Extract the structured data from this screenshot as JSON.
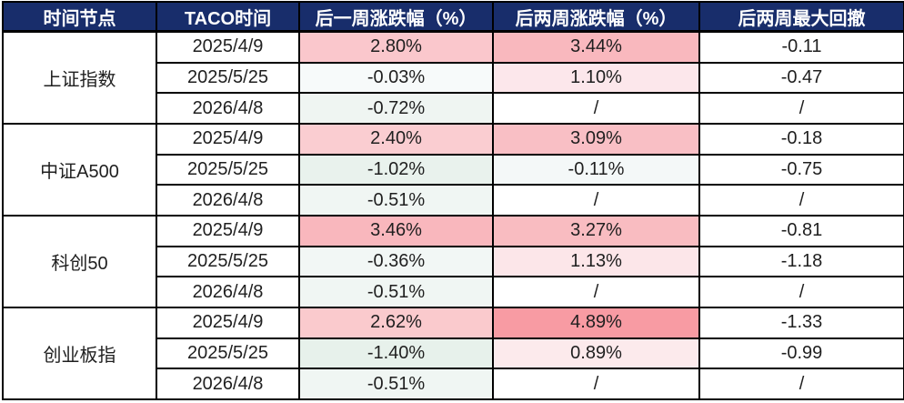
{
  "colors": {
    "header_bg": "#182d6b",
    "header_text": "#ffffff",
    "border": "#000000",
    "body_text": "#1f1f1f",
    "positive_strong": "#f89ba3",
    "positive_weak": "#fceaec",
    "negative_tint": "#e7f1eb"
  },
  "chart_data": {
    "type": "table",
    "columns": [
      "时间节点",
      "TACO时间",
      "后一周涨跌幅（%）",
      "后两周涨跌幅（%）",
      "后两周最大回撤"
    ],
    "groups": [
      {
        "name": "上证指数",
        "rows": [
          {
            "date": "2025/4/9",
            "w1": "2.80%",
            "w1_bg": "#fac7cc",
            "w2": "3.44%",
            "w2_bg": "#f9b8be",
            "dd": "-0.11",
            "dd_bg": "#ffffff"
          },
          {
            "date": "2025/5/25",
            "w1": "-0.03%",
            "w1_bg": "#f7fafa",
            "w2": "1.10%",
            "w2_bg": "#fce7eb",
            "dd": "-0.47",
            "dd_bg": "#ffffff"
          },
          {
            "date": "2026/4/8",
            "w1": "-0.72%",
            "w1_bg": "#eff5f2",
            "w2": "/",
            "w2_bg": "#ffffff",
            "dd": "/",
            "dd_bg": "#ffffff"
          }
        ]
      },
      {
        "name": "中证A500",
        "rows": [
          {
            "date": "2025/4/9",
            "w1": "2.40%",
            "w1_bg": "#facdd1",
            "w2": "3.09%",
            "w2_bg": "#f9bfc5",
            "dd": "-0.18",
            "dd_bg": "#ffffff"
          },
          {
            "date": "2025/5/25",
            "w1": "-1.02%",
            "w1_bg": "#e9f2ed",
            "w2": "-0.11%",
            "w2_bg": "#f4f8f8",
            "dd": "-0.75",
            "dd_bg": "#ffffff"
          },
          {
            "date": "2026/4/8",
            "w1": "-0.51%",
            "w1_bg": "#f0f6f3",
            "w2": "/",
            "w2_bg": "#ffffff",
            "dd": "/",
            "dd_bg": "#ffffff"
          }
        ]
      },
      {
        "name": "科创50",
        "rows": [
          {
            "date": "2025/4/9",
            "w1": "3.46%",
            "w1_bg": "#f9b7bd",
            "w2": "3.27%",
            "w2_bg": "#f9bcc1",
            "dd": "-0.81",
            "dd_bg": "#ffffff"
          },
          {
            "date": "2025/5/25",
            "w1": "-0.36%",
            "w1_bg": "#f2f7f5",
            "w2": "1.13%",
            "w2_bg": "#fce6e9",
            "dd": "-1.18",
            "dd_bg": "#ffffff"
          },
          {
            "date": "2026/4/8",
            "w1": "-0.51%",
            "w1_bg": "#f0f6f3",
            "w2": "/",
            "w2_bg": "#ffffff",
            "dd": "/",
            "dd_bg": "#ffffff"
          }
        ]
      },
      {
        "name": "创业板指",
        "rows": [
          {
            "date": "2025/4/9",
            "w1": "2.62%",
            "w1_bg": "#facacd",
            "w2": "4.89%",
            "w2_bg": "#f89ba3",
            "dd": "-1.33",
            "dd_bg": "#ffffff"
          },
          {
            "date": "2025/5/25",
            "w1": "-1.40%",
            "w1_bg": "#e7f1eb",
            "w2": "0.89%",
            "w2_bg": "#fceaec",
            "dd": "-0.99",
            "dd_bg": "#ffffff"
          },
          {
            "date": "2026/4/8",
            "w1": "-0.51%",
            "w1_bg": "#f0f6f3",
            "w2": "/",
            "w2_bg": "#ffffff",
            "dd": "/",
            "dd_bg": "#ffffff"
          }
        ]
      }
    ]
  }
}
